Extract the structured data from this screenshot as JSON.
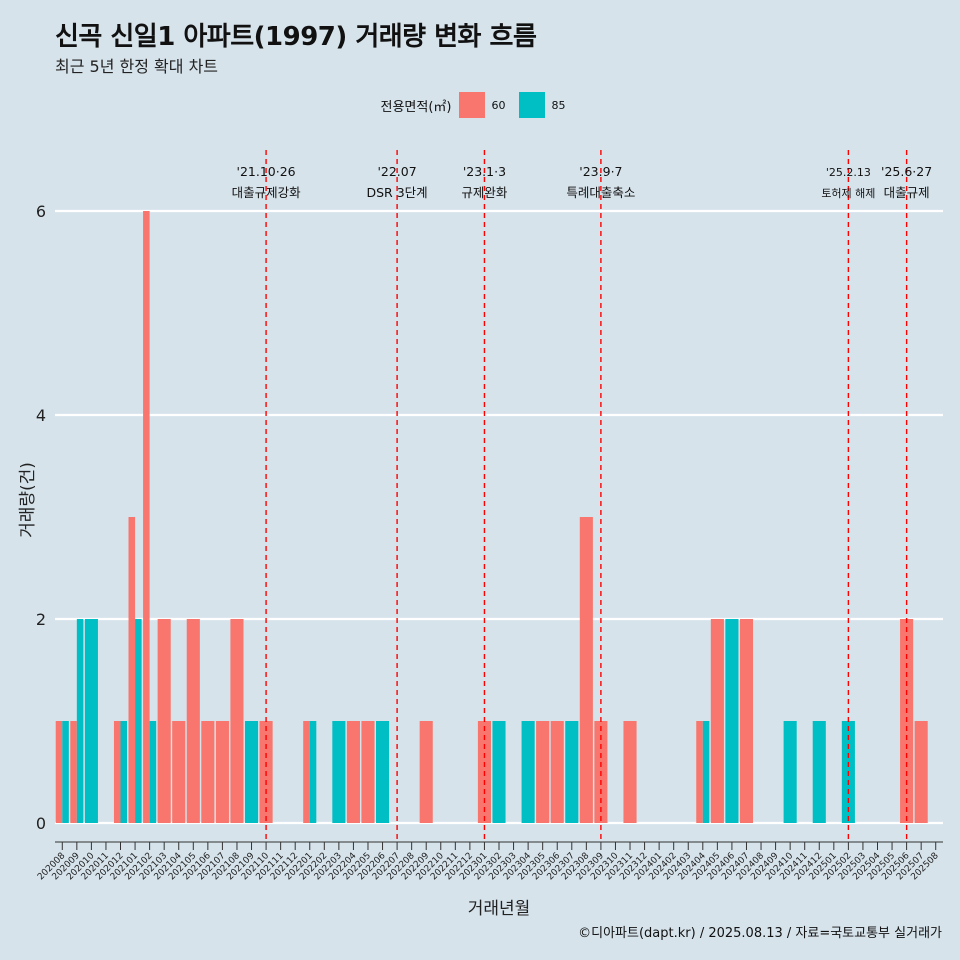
{
  "title": "신곡 신일1 아파트(1997) 거래량 변화 흐름",
  "subtitle": "최근 5년 한정 확대 차트",
  "legend": {
    "title": "전용면적(㎡)",
    "items": [
      {
        "label": "60",
        "color": "#f8766d"
      },
      {
        "label": "85",
        "color": "#00bfc4"
      }
    ]
  },
  "caption": "©디아파트(dapt.kr) / 2025.08.13 / 자료=국토교통부 실거래가",
  "chart_data": {
    "type": "bar",
    "xlabel": "거래년월",
    "ylabel": "거래량(건)",
    "ylim": [
      0,
      6
    ],
    "yticks": [
      0,
      2,
      4,
      6
    ],
    "categories": [
      "202008",
      "202009",
      "202010",
      "202011",
      "202012",
      "202101",
      "202102",
      "202103",
      "202104",
      "202105",
      "202106",
      "202107",
      "202108",
      "202109",
      "202110",
      "202111",
      "202112",
      "202201",
      "202202",
      "202203",
      "202204",
      "202205",
      "202206",
      "202207",
      "202208",
      "202209",
      "202210",
      "202211",
      "202212",
      "202301",
      "202302",
      "202303",
      "202304",
      "202305",
      "202306",
      "202307",
      "202308",
      "202309",
      "202310",
      "202311",
      "202312",
      "202401",
      "202402",
      "202403",
      "202404",
      "202405",
      "202406",
      "202407",
      "202408",
      "202409",
      "202410",
      "202411",
      "202412",
      "202501",
      "202502",
      "202503",
      "202504",
      "202505",
      "202506",
      "202507",
      "202508"
    ],
    "series": [
      {
        "name": "60",
        "color": "#f8766d",
        "values": [
          1,
          1,
          0,
          0,
          1,
          3,
          6,
          2,
          1,
          2,
          1,
          1,
          2,
          0,
          1,
          0,
          0,
          1,
          0,
          0,
          1,
          1,
          0,
          0,
          0,
          1,
          0,
          0,
          0,
          1,
          0,
          0,
          0,
          1,
          1,
          0,
          3,
          1,
          0,
          1,
          0,
          0,
          0,
          0,
          1,
          2,
          0,
          2,
          0,
          0,
          0,
          0,
          0,
          0,
          0,
          0,
          0,
          0,
          2,
          1,
          0
        ]
      },
      {
        "name": "85",
        "color": "#00bfc4",
        "values": [
          1,
          2,
          2,
          0,
          1,
          2,
          1,
          0,
          0,
          0,
          0,
          0,
          0,
          1,
          0,
          0,
          0,
          1,
          0,
          1,
          0,
          0,
          1,
          0,
          0,
          0,
          0,
          0,
          0,
          0,
          1,
          0,
          1,
          0,
          0,
          1,
          0,
          0,
          0,
          0,
          0,
          0,
          0,
          0,
          1,
          0,
          2,
          0,
          0,
          0,
          1,
          0,
          1,
          0,
          1,
          0,
          0,
          0,
          0,
          0,
          0
        ]
      }
    ],
    "events": [
      {
        "category": "202110",
        "date": "'21.10·26",
        "label": "대출규제강화"
      },
      {
        "category": "202207",
        "date": "'22.07",
        "label": "DSR 3단계"
      },
      {
        "category": "202301",
        "date": "'23.1·3",
        "label": "규제완화"
      },
      {
        "category": "202309",
        "date": "'23.9·7",
        "label": "특례대출축소"
      },
      {
        "category": "202502",
        "date": "'25.2.13",
        "label": "토허제 해제"
      },
      {
        "category": "202506",
        "date": "'25.6·27",
        "label": "대출규제"
      }
    ]
  }
}
